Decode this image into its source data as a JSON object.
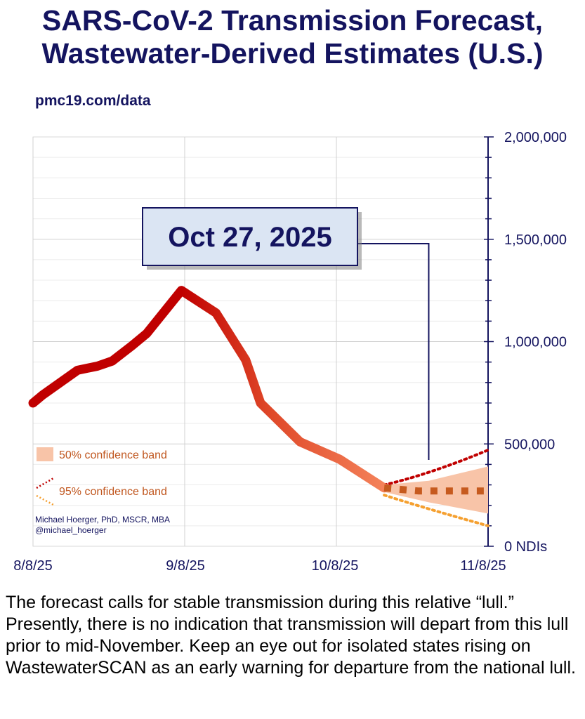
{
  "header": {
    "title_line1": "SARS-CoV-2 Transmission Forecast,",
    "title_line2": "Wastewater-Derived Estimates (U.S.)",
    "source": "pmc19.com/data"
  },
  "chart_data": {
    "type": "line",
    "ylim": [
      0,
      2000000
    ],
    "y_ticks": [
      {
        "value": 2000000,
        "label": "2,000,000"
      },
      {
        "value": 1500000,
        "label": "1,500,000"
      },
      {
        "value": 1000000,
        "label": "1,000,000"
      },
      {
        "value": 500000,
        "label": "500,000"
      },
      {
        "value": 0,
        "label": "0 NDIs"
      }
    ],
    "x_ticks": [
      "8/8/25",
      "9/8/25",
      "10/8/25",
      "11/8/25"
    ],
    "x_range_days": [
      0,
      92
    ],
    "annotation": "Oct 27, 2025",
    "annotation_day": 80,
    "series": [
      {
        "kind": "observed",
        "points": [
          {
            "day": 0,
            "value": 700000
          },
          {
            "day": 2,
            "value": 740000
          },
          {
            "day": 9,
            "value": 860000
          },
          {
            "day": 13,
            "value": 880000
          },
          {
            "day": 16,
            "value": 905000
          },
          {
            "day": 20,
            "value": 980000
          },
          {
            "day": 23,
            "value": 1040000
          },
          {
            "day": 30,
            "value": 1250000
          },
          {
            "day": 37,
            "value": 1140000
          },
          {
            "day": 43,
            "value": 910000
          },
          {
            "day": 46,
            "value": 700000
          },
          {
            "day": 54,
            "value": 510000
          },
          {
            "day": 62,
            "value": 425000
          },
          {
            "day": 71,
            "value": 285000
          }
        ]
      },
      {
        "kind": "forecast",
        "points": [
          {
            "day": 71,
            "value": 285000
          },
          {
            "day": 78,
            "value": 270000
          },
          {
            "day": 92,
            "value": 270000
          }
        ]
      }
    ],
    "band_50": {
      "upper": [
        {
          "day": 71,
          "value": 300000
        },
        {
          "day": 80,
          "value": 320000
        },
        {
          "day": 92,
          "value": 390000
        }
      ],
      "lower": [
        {
          "day": 71,
          "value": 265000
        },
        {
          "day": 80,
          "value": 215000
        },
        {
          "day": 92,
          "value": 160000
        }
      ]
    },
    "band_95": {
      "upper": [
        {
          "day": 71,
          "value": 300000
        },
        {
          "day": 80,
          "value": 350000
        },
        {
          "day": 92,
          "value": 470000
        }
      ],
      "lower": [
        {
          "day": 71,
          "value": 250000
        },
        {
          "day": 80,
          "value": 180000
        },
        {
          "day": 92,
          "value": 100000
        }
      ]
    },
    "legend": {
      "band_50": "50% confidence band",
      "band_95": "95% confidence band"
    },
    "credit_line1": "Michael Hoerger, PhD, MSCR, MBA",
    "credit_line2": "@michael_hoerger",
    "colors": {
      "navy": "#14145f",
      "peak_red": "#c00000",
      "low_orange": "#f4825a",
      "band_50": "#f8c4a8",
      "dot_upper": "#c00000",
      "dot_lower": "#f5a030",
      "forecast_dash": "#c65a1e",
      "legend_text": "#c0561e"
    }
  },
  "caption": "The forecast calls for stable transmission during this relative “lull.” Presently, there is no indication that transmission will depart from this lull prior to mid-November. Keep an eye out for isolated states rising on WastewaterSCAN as an early warning for departure from the national lull."
}
